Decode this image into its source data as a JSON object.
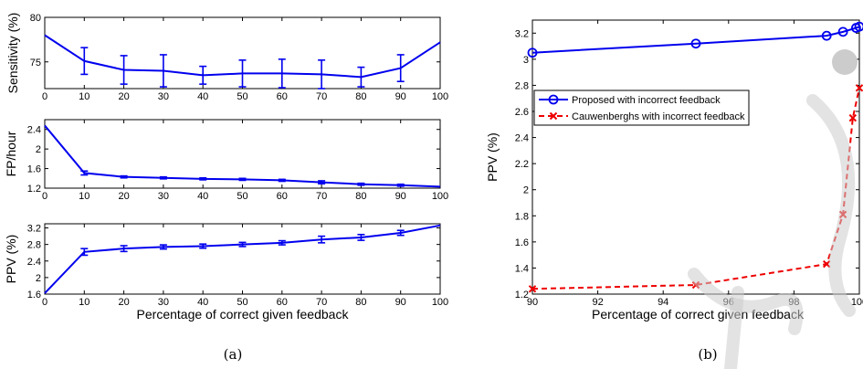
{
  "colors": {
    "blue": "#0000ee",
    "red": "#ee0000",
    "watermark": "#cccccc"
  },
  "captions": {
    "a": "(a)",
    "b": "(b)"
  },
  "chart_data": [
    {
      "type": "line",
      "panel": "a-top",
      "x": [
        0,
        10,
        20,
        30,
        40,
        50,
        60,
        70,
        80,
        90,
        100
      ],
      "xticks": [
        0,
        10,
        20,
        30,
        40,
        50,
        60,
        70,
        80,
        90,
        100
      ],
      "xlim": [
        0,
        100
      ],
      "ylim": [
        72,
        80
      ],
      "yticks": [
        75,
        80
      ],
      "ylabel": "Sensitivity (%)",
      "xlabel": "",
      "grid": false,
      "series": [
        {
          "values": [
            78.0,
            75.1,
            74.1,
            74.0,
            73.5,
            73.7,
            73.7,
            73.6,
            73.3,
            74.3,
            77.2
          ],
          "errors": [
            0,
            1.5,
            1.6,
            1.8,
            1.0,
            1.5,
            1.6,
            1.6,
            1.1,
            1.5,
            0
          ]
        }
      ]
    },
    {
      "type": "line",
      "panel": "a-middle",
      "x": [
        0,
        10,
        20,
        30,
        40,
        50,
        60,
        70,
        80,
        90,
        100
      ],
      "xticks": [
        0,
        10,
        20,
        30,
        40,
        50,
        60,
        70,
        80,
        90,
        100
      ],
      "xlim": [
        0,
        100
      ],
      "ylim": [
        1.2,
        2.6
      ],
      "yticks": [
        1.2,
        1.6,
        2,
        2.4
      ],
      "ylabel": "FP/hour",
      "xlabel": "",
      "grid": false,
      "series": [
        {
          "values": [
            2.48,
            1.51,
            1.43,
            1.41,
            1.39,
            1.38,
            1.36,
            1.32,
            1.28,
            1.26,
            1.23
          ],
          "errors": [
            0,
            0.04,
            0.02,
            0.02,
            0.02,
            0.02,
            0.02,
            0.03,
            0.02,
            0.02,
            0
          ]
        }
      ]
    },
    {
      "type": "line",
      "panel": "a-bottom",
      "x": [
        0,
        10,
        20,
        30,
        40,
        50,
        60,
        70,
        80,
        90,
        100
      ],
      "xticks": [
        0,
        10,
        20,
        30,
        40,
        50,
        60,
        70,
        80,
        90,
        100
      ],
      "xlim": [
        0,
        100
      ],
      "ylim": [
        1.6,
        3.3
      ],
      "yticks": [
        1.6,
        2,
        2.4,
        2.8,
        3.2
      ],
      "ylabel": "PPV (%)",
      "xlabel": "Percentage of correct given feedback",
      "grid": false,
      "series": [
        {
          "values": [
            1.62,
            2.62,
            2.7,
            2.74,
            2.76,
            2.8,
            2.84,
            2.92,
            2.97,
            3.08,
            3.26
          ],
          "errors": [
            0,
            0.08,
            0.07,
            0.05,
            0.05,
            0.05,
            0.05,
            0.08,
            0.07,
            0.06,
            0
          ]
        }
      ]
    },
    {
      "type": "line",
      "panel": "b",
      "xticks": [
        90,
        92,
        94,
        96,
        98,
        100
      ],
      "xlim": [
        90,
        100
      ],
      "ylim": [
        1.2,
        3.3
      ],
      "yticks": [
        1.2,
        1.4,
        1.6,
        1.8,
        2,
        2.2,
        2.4,
        2.6,
        2.8,
        3,
        3.2
      ],
      "ylabel": "PPV (%)",
      "xlabel": "Percentage of correct given feedback",
      "legend": "top-left",
      "grid": false,
      "series": [
        {
          "name": "Proposed with incorrect feedback",
          "marker": "circle",
          "style": "solid",
          "x": [
            90,
            95,
            99,
            99.5,
            99.9,
            100
          ],
          "values": [
            3.05,
            3.12,
            3.18,
            3.21,
            3.24,
            3.25
          ]
        },
        {
          "name": "Cauwenberghs with incorrect feedback",
          "marker": "x",
          "style": "dashed",
          "x": [
            90,
            95,
            99,
            99.5,
            99.8,
            100
          ],
          "values": [
            1.24,
            1.27,
            1.43,
            1.81,
            2.55,
            2.78
          ]
        }
      ]
    }
  ]
}
